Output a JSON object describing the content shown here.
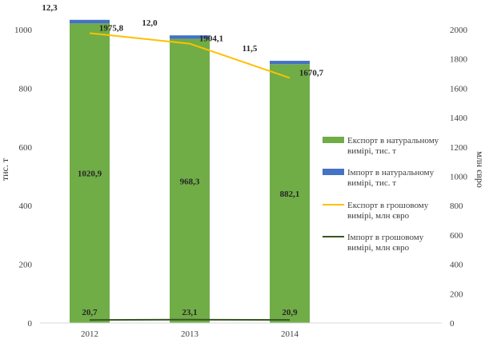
{
  "chart_data": {
    "type": "bar",
    "categories": [
      "2012",
      "2013",
      "2014"
    ],
    "series": [
      {
        "name": "Експорт в натуральному вимірі, тис. т",
        "kind": "bar-stacked",
        "axis": "left",
        "color": "#70ad47",
        "values": [
          1020.9,
          968.3,
          882.1
        ],
        "labels": [
          "1020,9",
          "968,3",
          "882,1"
        ]
      },
      {
        "name": "Імпорт в натуральному вимірі, тис. т",
        "kind": "bar-stacked",
        "axis": "left",
        "color": "#4472c4",
        "values": [
          12.3,
          12.0,
          11.5
        ],
        "labels": [
          "12,3",
          "12,0",
          "11,5"
        ]
      },
      {
        "name": "Експорт в грошовому вимірі, млн євро",
        "kind": "line",
        "axis": "right",
        "color": "#ffc000",
        "values": [
          1975.8,
          1904.1,
          1670.7
        ],
        "labels": [
          "1975,8",
          "1904,1",
          "1670,7"
        ]
      },
      {
        "name": "Імпорт в грошовому вимірі, млн євро",
        "kind": "line",
        "axis": "right",
        "color": "#375623",
        "values": [
          20.7,
          23.1,
          20.9
        ],
        "labels": [
          "20,7",
          "23,1",
          "20,9"
        ]
      }
    ],
    "ylabel": "тис. т",
    "y2label": "млн євро",
    "ylim": [
      0,
      1000
    ],
    "y2lim": [
      0,
      2000
    ],
    "yticks": [
      "0",
      "200",
      "400",
      "600",
      "800",
      "1000"
    ],
    "y2ticks": [
      "0",
      "200",
      "400",
      "600",
      "800",
      "1000",
      "1200",
      "1400",
      "1600",
      "1800",
      "2000"
    ],
    "legend_position": "right",
    "grid": false
  }
}
